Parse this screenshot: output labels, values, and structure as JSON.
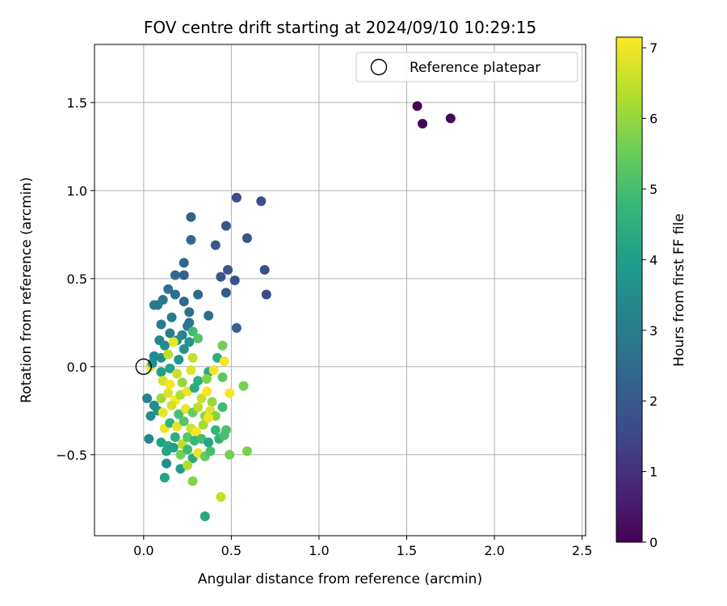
{
  "chart_data": {
    "type": "scatter",
    "title": "FOV centre drift starting at 2024/09/10 10:29:15",
    "xlabel": "Angular distance from reference (arcmin)",
    "ylabel": "Rotation from reference (arcmin)",
    "xlim": [
      -0.28,
      2.52
    ],
    "ylim": [
      -0.96,
      1.83
    ],
    "xticks": [
      0.0,
      0.5,
      1.0,
      1.5,
      2.0,
      2.5
    ],
    "xtick_labels": [
      "0.0",
      "0.5",
      "1.0",
      "1.5",
      "2.0",
      "2.5"
    ],
    "yticks": [
      -0.5,
      0.0,
      0.5,
      1.0,
      1.5
    ],
    "ytick_labels": [
      "−0.5",
      "0.0",
      "0.5",
      "1.0",
      "1.5"
    ],
    "grid": true,
    "legend": {
      "position": "top-right",
      "entries": [
        "Reference platepar"
      ]
    },
    "reference_point": {
      "x": 0.0,
      "y": 0.0,
      "label": "Reference platepar"
    },
    "colorbar": {
      "label": "Hours from first FF file",
      "range": [
        0,
        7.15
      ],
      "ticks": [
        0,
        1,
        2,
        3,
        4,
        5,
        6,
        7
      ],
      "tick_labels": [
        "0",
        "1",
        "2",
        "3",
        "4",
        "5",
        "6",
        "7"
      ],
      "colormap": "viridis",
      "colormap_stops": [
        "#440154",
        "#482878",
        "#3e4a89",
        "#31688e",
        "#26828e",
        "#1f9e89",
        "#35b779",
        "#6ece58",
        "#b5de2b",
        "#fde725"
      ]
    },
    "points": [
      [
        1.56,
        1.48,
        0.05
      ],
      [
        1.59,
        1.38,
        0.1
      ],
      [
        1.75,
        1.41,
        0.15
      ],
      [
        0.53,
        0.96,
        1.6
      ],
      [
        0.67,
        0.94,
        1.7
      ],
      [
        0.27,
        0.85,
        2.2
      ],
      [
        0.47,
        0.8,
        1.9
      ],
      [
        0.59,
        0.73,
        1.8
      ],
      [
        0.27,
        0.72,
        2.4
      ],
      [
        0.41,
        0.69,
        2.0
      ],
      [
        0.23,
        0.59,
        2.3
      ],
      [
        0.48,
        0.55,
        1.9
      ],
      [
        0.69,
        0.55,
        1.7
      ],
      [
        0.18,
        0.52,
        2.5
      ],
      [
        0.23,
        0.52,
        2.2
      ],
      [
        0.44,
        0.51,
        1.9
      ],
      [
        0.52,
        0.49,
        1.8
      ],
      [
        0.14,
        0.44,
        2.7
      ],
      [
        0.47,
        0.42,
        2.0
      ],
      [
        0.7,
        0.41,
        1.6
      ],
      [
        0.18,
        0.41,
        2.6
      ],
      [
        0.31,
        0.41,
        2.4
      ],
      [
        0.11,
        0.38,
        2.8
      ],
      [
        0.23,
        0.37,
        2.5
      ],
      [
        0.06,
        0.35,
        3.0
      ],
      [
        0.08,
        0.35,
        2.9
      ],
      [
        0.26,
        0.31,
        2.6
      ],
      [
        0.37,
        0.29,
        2.6
      ],
      [
        0.16,
        0.28,
        2.9
      ],
      [
        0.26,
        0.25,
        2.7
      ],
      [
        0.1,
        0.24,
        3.0
      ],
      [
        0.25,
        0.23,
        2.8
      ],
      [
        0.53,
        0.22,
        2.1
      ],
      [
        0.15,
        0.19,
        3.1
      ],
      [
        0.22,
        0.18,
        3.2
      ],
      [
        0.28,
        0.2,
        4.9
      ],
      [
        0.09,
        0.15,
        3.3
      ],
      [
        0.19,
        0.15,
        3.5
      ],
      [
        0.31,
        0.16,
        5.2
      ],
      [
        0.12,
        0.12,
        3.4
      ],
      [
        0.17,
        0.14,
        6.9
      ],
      [
        0.23,
        0.1,
        3.6
      ],
      [
        0.26,
        0.14,
        3.7
      ],
      [
        0.45,
        0.12,
        5.6
      ],
      [
        0.06,
        0.06,
        3.4
      ],
      [
        0.1,
        0.05,
        3.5
      ],
      [
        0.14,
        0.07,
        6.4
      ],
      [
        0.2,
        0.04,
        3.7
      ],
      [
        0.28,
        0.05,
        6.5
      ],
      [
        0.42,
        0.05,
        4.5
      ],
      [
        0.46,
        0.03,
        7.1
      ],
      [
        0.04,
        0.0,
        6.9
      ],
      [
        0.05,
        0.02,
        3.6
      ],
      [
        0.1,
        -0.03,
        4.0
      ],
      [
        0.15,
        -0.01,
        4.1
      ],
      [
        0.19,
        -0.04,
        6.6
      ],
      [
        0.27,
        -0.02,
        6.8
      ],
      [
        0.37,
        -0.03,
        4.3
      ],
      [
        0.4,
        -0.02,
        7.0
      ],
      [
        0.45,
        -0.06,
        5.3
      ],
      [
        0.57,
        -0.11,
        5.7
      ],
      [
        0.11,
        -0.08,
        6.7
      ],
      [
        0.15,
        -0.1,
        7.1
      ],
      [
        0.22,
        -0.09,
        6.0
      ],
      [
        0.31,
        -0.08,
        4.5
      ],
      [
        0.36,
        -0.07,
        5.8
      ],
      [
        0.49,
        -0.15,
        7.1
      ],
      [
        0.02,
        -0.18,
        3.2
      ],
      [
        0.06,
        -0.22,
        3.5
      ],
      [
        0.1,
        -0.18,
        6.1
      ],
      [
        0.14,
        -0.15,
        6.8
      ],
      [
        0.18,
        -0.19,
        7.1
      ],
      [
        0.21,
        -0.16,
        6.3
      ],
      [
        0.25,
        -0.14,
        7.0
      ],
      [
        0.29,
        -0.12,
        4.4
      ],
      [
        0.33,
        -0.18,
        6.6
      ],
      [
        0.36,
        -0.14,
        7.1
      ],
      [
        0.39,
        -0.2,
        6.0
      ],
      [
        0.45,
        -0.23,
        4.9
      ],
      [
        0.04,
        -0.28,
        3.4
      ],
      [
        0.08,
        -0.25,
        3.6
      ],
      [
        0.11,
        -0.26,
        6.9
      ],
      [
        0.16,
        -0.22,
        6.7
      ],
      [
        0.2,
        -0.27,
        5.0
      ],
      [
        0.24,
        -0.24,
        7.0
      ],
      [
        0.28,
        -0.26,
        5.5
      ],
      [
        0.31,
        -0.23,
        6.4
      ],
      [
        0.35,
        -0.28,
        5.9
      ],
      [
        0.38,
        -0.25,
        6.8
      ],
      [
        0.41,
        -0.28,
        5.8
      ],
      [
        0.12,
        -0.35,
        7.0
      ],
      [
        0.15,
        -0.32,
        4.6
      ],
      [
        0.19,
        -0.34,
        6.9
      ],
      [
        0.23,
        -0.31,
        5.2
      ],
      [
        0.27,
        -0.35,
        6.6
      ],
      [
        0.3,
        -0.37,
        7.1
      ],
      [
        0.34,
        -0.33,
        6.2
      ],
      [
        0.37,
        -0.29,
        7.0
      ],
      [
        0.41,
        -0.36,
        4.7
      ],
      [
        0.47,
        -0.36,
        5.1
      ],
      [
        0.03,
        -0.41,
        3.3
      ],
      [
        0.1,
        -0.43,
        4.1
      ],
      [
        0.14,
        -0.45,
        4.3
      ],
      [
        0.18,
        -0.4,
        4.5
      ],
      [
        0.22,
        -0.44,
        6.5
      ],
      [
        0.25,
        -0.4,
        5.3
      ],
      [
        0.29,
        -0.42,
        4.8
      ],
      [
        0.33,
        -0.41,
        5.0
      ],
      [
        0.37,
        -0.43,
        4.2
      ],
      [
        0.43,
        -0.41,
        4.6
      ],
      [
        0.46,
        -0.39,
        5.0
      ],
      [
        0.13,
        -0.48,
        4.2
      ],
      [
        0.17,
        -0.46,
        4.0
      ],
      [
        0.21,
        -0.5,
        5.6
      ],
      [
        0.25,
        -0.47,
        4.9
      ],
      [
        0.28,
        -0.52,
        4.4
      ],
      [
        0.31,
        -0.49,
        7.0
      ],
      [
        0.35,
        -0.51,
        5.4
      ],
      [
        0.38,
        -0.48,
        5.0
      ],
      [
        0.49,
        -0.5,
        5.6
      ],
      [
        0.59,
        -0.48,
        5.7
      ],
      [
        0.13,
        -0.55,
        3.6
      ],
      [
        0.21,
        -0.58,
        4.0
      ],
      [
        0.25,
        -0.56,
        6.3
      ],
      [
        0.12,
        -0.63,
        4.1
      ],
      [
        0.28,
        -0.65,
        5.8
      ],
      [
        0.44,
        -0.74,
        6.5
      ],
      [
        0.35,
        -0.85,
        4.3
      ]
    ]
  }
}
